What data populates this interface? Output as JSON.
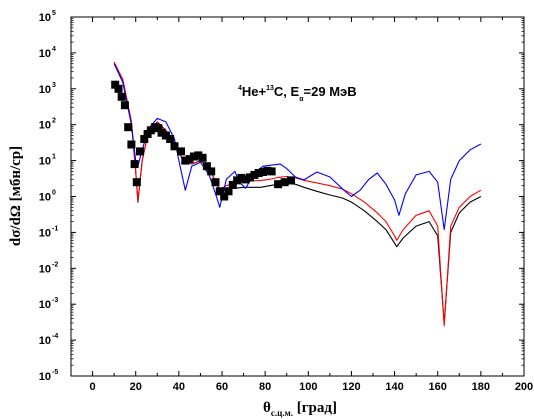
{
  "chart_data": {
    "type": "scatter",
    "title": "",
    "annotation": {
      "prefix_sup": "4",
      "a": "He+",
      "b_sup": "13",
      "c": "C, E",
      "d_sub": "α",
      "e": "=29 МэВ"
    },
    "ylabel": "dσ/dΩ [мбн/ср]",
    "xlabel": {
      "main": "θ",
      "sub": "с.ц.м.",
      "unit": " [град]"
    },
    "xlim": [
      -10,
      200
    ],
    "ylim": [
      -5,
      5
    ],
    "y_scale": "log",
    "x_ticks": [
      0,
      20,
      40,
      60,
      80,
      100,
      120,
      140,
      160,
      180,
      200
    ],
    "x_tick_labels": [
      "0",
      "20",
      "40",
      "60",
      "80",
      "100",
      "120",
      "140",
      "160",
      "180",
      "200"
    ],
    "y_ticks_exp": [
      -5,
      -4,
      -3,
      -2,
      -1,
      0,
      1,
      2,
      3,
      4,
      5
    ],
    "y_tick_labels": [
      "-5",
      "-4",
      "-3",
      "-2",
      "-1",
      "0",
      "1",
      "2",
      "3",
      "4",
      "5"
    ],
    "y_tick_base": "10",
    "grid": false,
    "series": [
      {
        "kind": "markers",
        "color": "#000000",
        "x": [
          10.5,
          12,
          13.5,
          15,
          16.5,
          18,
          19.5,
          20.5,
          22,
          24,
          25.5,
          27,
          29,
          30.5,
          32,
          34,
          36,
          38,
          41,
          43,
          45,
          47,
          49,
          51,
          53,
          55,
          57,
          59,
          61,
          63,
          65,
          67,
          69,
          71,
          73,
          75,
          77,
          79,
          81,
          83,
          86,
          89,
          92
        ],
        "y": [
          1300,
          1000,
          600,
          350,
          85,
          28,
          8,
          2.5,
          18,
          40,
          55,
          70,
          85,
          80,
          60,
          50,
          40,
          25,
          18,
          10,
          11,
          13,
          14,
          12,
          7,
          5,
          2.5,
          1.4,
          1.0,
          1.4,
          2.1,
          2.8,
          3.3,
          3.0,
          3.4,
          4.0,
          4.5,
          4.8,
          5.2,
          5.0,
          2.2,
          2.5,
          2.8
        ]
      },
      {
        "kind": "line",
        "color": "#000000",
        "x": [
          10,
          14,
          18,
          20,
          21,
          23,
          26,
          30,
          34,
          38,
          42,
          46,
          50,
          54,
          58,
          59,
          62,
          66,
          70,
          74,
          78,
          82,
          86,
          90,
          94,
          98,
          104,
          110,
          116,
          120,
          126,
          132,
          136,
          140,
          141,
          144,
          150,
          156,
          160,
          163,
          166,
          170,
          175,
          180
        ],
        "y": [
          5500,
          1800,
          120,
          5,
          0.7,
          10,
          70,
          120,
          70,
          30,
          10,
          8,
          10,
          6,
          2,
          1.3,
          1.6,
          1.7,
          1.8,
          1.8,
          1.8,
          2.0,
          2.2,
          2.3,
          2.2,
          1.8,
          1.4,
          1.1,
          0.9,
          0.7,
          0.4,
          0.2,
          0.12,
          0.05,
          0.04,
          0.07,
          0.15,
          0.2,
          0.08,
          0.0003,
          0.1,
          0.35,
          0.7,
          1.0
        ]
      },
      {
        "kind": "line",
        "color": "#ff0000",
        "x": [
          10,
          14,
          18,
          20,
          21,
          23,
          26,
          30,
          34,
          38,
          42,
          46,
          50,
          54,
          58,
          59,
          62,
          66,
          70,
          74,
          78,
          82,
          86,
          90,
          94,
          98,
          104,
          110,
          116,
          120,
          126,
          132,
          136,
          140,
          141,
          144,
          150,
          156,
          160,
          163,
          166,
          170,
          175,
          180
        ],
        "y": [
          5500,
          1800,
          120,
          5,
          0.75,
          10,
          70,
          120,
          70,
          30,
          10,
          8,
          10,
          6,
          2,
          1.6,
          2.0,
          2.4,
          2.6,
          2.7,
          2.8,
          3.0,
          3.4,
          3.6,
          3.3,
          2.8,
          2.4,
          2.0,
          1.6,
          1.2,
          0.7,
          0.35,
          0.2,
          0.08,
          0.06,
          0.12,
          0.3,
          0.4,
          0.15,
          0.00025,
          0.15,
          0.5,
          1.0,
          1.5
        ]
      },
      {
        "kind": "line",
        "color": "#0000ff",
        "x": [
          10,
          14,
          18,
          20,
          21,
          23,
          26,
          30,
          34,
          38,
          40,
          43,
          46,
          50,
          54,
          57,
          59,
          62,
          66,
          68,
          71,
          75,
          79,
          83,
          87,
          90,
          94,
          98,
          104,
          110,
          116,
          120,
          124,
          128,
          132,
          136,
          140,
          142,
          145,
          150,
          156,
          160,
          163,
          166,
          170,
          175,
          180
        ],
        "y": [
          5000,
          1500,
          100,
          10,
          7,
          20,
          80,
          150,
          120,
          40,
          10,
          1.5,
          7,
          9,
          4,
          1.2,
          0.5,
          3,
          5,
          2.5,
          1.7,
          4.5,
          7,
          7.5,
          8,
          6,
          3.5,
          2.9,
          4.8,
          3.5,
          1.6,
          1.0,
          1.5,
          3,
          4.5,
          2.2,
          0.8,
          0.3,
          1.2,
          4,
          5,
          2.5,
          0.12,
          3,
          10,
          20,
          29
        ]
      }
    ]
  }
}
